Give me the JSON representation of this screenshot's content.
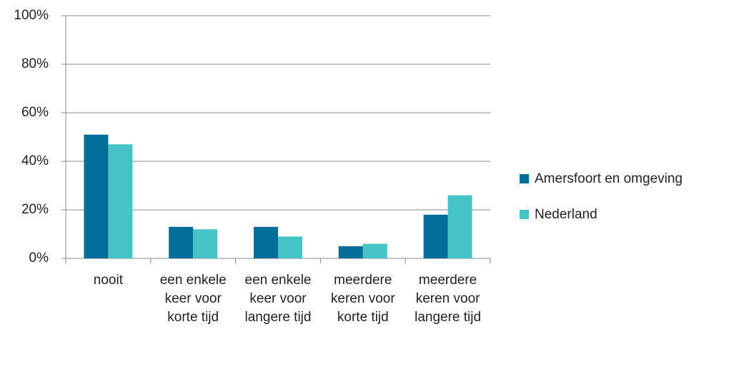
{
  "chart_data": {
    "type": "bar",
    "categories": [
      "nooit",
      "een enkele keer voor korte tijd",
      "een enkele keer voor langere tijd",
      "meerdere keren voor korte tijd",
      "meerdere keren voor langere tijd"
    ],
    "series": [
      {
        "name": "Amersfoort en omgeving",
        "color": "#006e98",
        "values": [
          51,
          13,
          13,
          5,
          18
        ]
      },
      {
        "name": "Nederland",
        "color": "#45c3c7",
        "values": [
          47,
          12,
          9,
          6,
          26
        ]
      }
    ],
    "ylim": [
      0,
      100
    ],
    "yticks": [
      {
        "value": 0,
        "label": "0%"
      },
      {
        "value": 20,
        "label": "20%"
      },
      {
        "value": 40,
        "label": "40%"
      },
      {
        "value": 60,
        "label": "60%"
      },
      {
        "value": 80,
        "label": "80%"
      },
      {
        "value": 100,
        "label": "100%"
      }
    ],
    "grid": true,
    "legend": "right"
  }
}
